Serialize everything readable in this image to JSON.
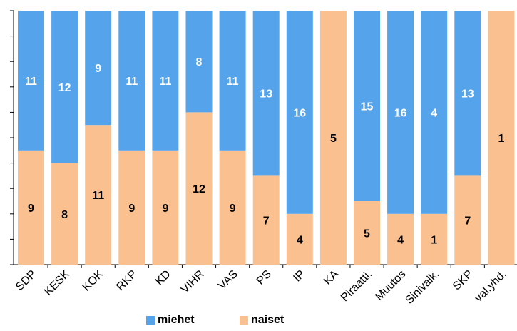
{
  "chart_data": {
    "type": "bar",
    "stacked": "percent",
    "categories": [
      "SDP",
      "KESK",
      "KOK",
      "RKP",
      "KD",
      "VIHR",
      "VAS",
      "PS",
      "IP",
      "KA",
      "Piraatti.",
      "Muutos",
      "Sinivalk.",
      "SKP",
      "val.yhd."
    ],
    "series": [
      {
        "name": "naiset",
        "color": "#fac090",
        "values": [
          9,
          8,
          11,
          9,
          9,
          12,
          9,
          7,
          4,
          5,
          5,
          4,
          1,
          7,
          1
        ]
      },
      {
        "name": "miehet",
        "color": "#55a3ea",
        "values": [
          11,
          12,
          9,
          11,
          11,
          8,
          11,
          13,
          16,
          0,
          15,
          16,
          4,
          13,
          0
        ]
      }
    ],
    "ylim": [
      0,
      100
    ],
    "grid": false,
    "legend_position": "bottom"
  }
}
